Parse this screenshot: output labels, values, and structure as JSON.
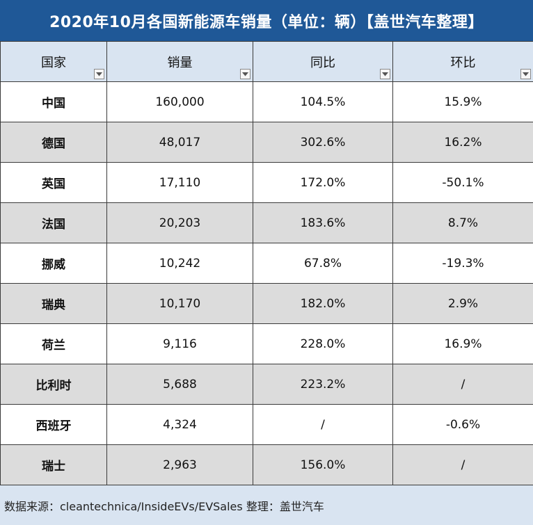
{
  "title": "2020年10月各国新能源车销量（单位：辆）【盖世汽车整理】",
  "colors": {
    "title_bg": "#1f5897",
    "header_bg": "#d9e4f1",
    "row_alt_bg": "#dcdcdc",
    "negative_text": "#e0221b"
  },
  "headers": {
    "country": "国家",
    "sales": "销量",
    "yoy": "同比",
    "mom": "环比"
  },
  "filter_icon": "dropdown-arrow-icon",
  "rows": [
    {
      "country": "中国",
      "sales": "160,000",
      "yoy": "104.5%",
      "mom": "15.9%"
    },
    {
      "country": "德国",
      "sales": "48,017",
      "yoy": "302.6%",
      "mom": "16.2%"
    },
    {
      "country": "英国",
      "sales": "17,110",
      "yoy": "172.0%",
      "mom": "-50.1%"
    },
    {
      "country": "法国",
      "sales": "20,203",
      "yoy": "183.6%",
      "mom": "8.7%"
    },
    {
      "country": "挪威",
      "sales": "10,242",
      "yoy": "67.8%",
      "mom": "-19.3%"
    },
    {
      "country": "瑞典",
      "sales": "10,170",
      "yoy": "182.0%",
      "mom": "2.9%"
    },
    {
      "country": "荷兰",
      "sales": "9,116",
      "yoy": "228.0%",
      "mom": "16.9%"
    },
    {
      "country": "比利时",
      "sales": "5,688",
      "yoy": "223.2%",
      "mom": "/"
    },
    {
      "country": "西班牙",
      "sales": "4,324",
      "yoy": "/",
      "mom": "-0.6%"
    },
    {
      "country": "瑞士",
      "sales": "2,963",
      "yoy": "156.0%",
      "mom": "/"
    }
  ],
  "footer": "数据来源：cleantechnica/InsideEVs/EVSales 整理：盖世汽车"
}
